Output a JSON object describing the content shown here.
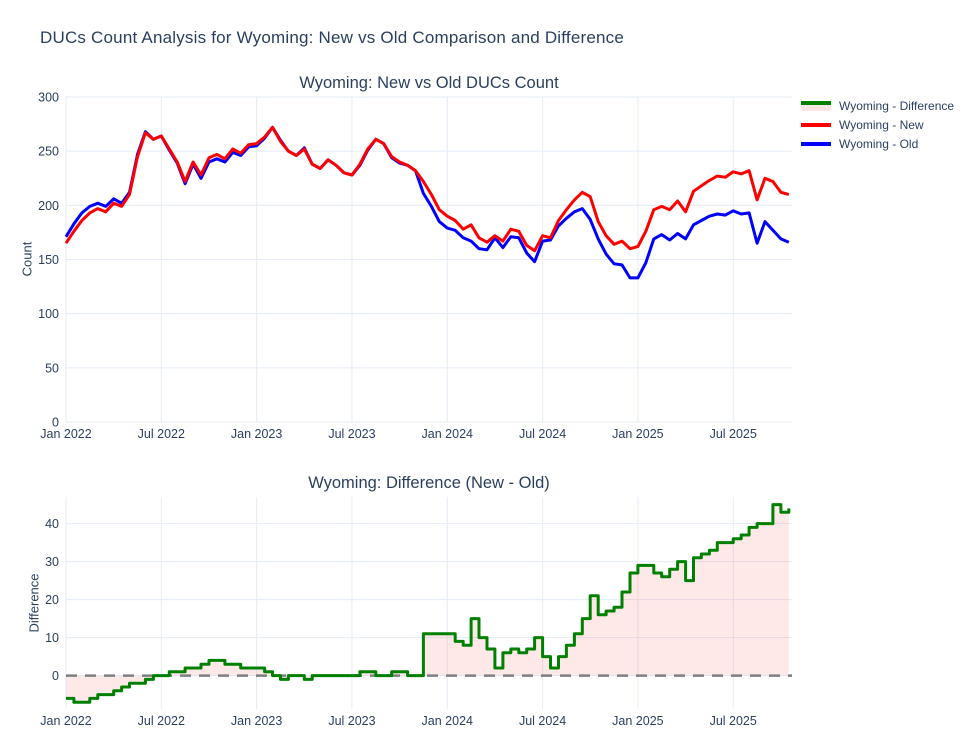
{
  "figure": {
    "title": "DUCs Count Analysis for Wyoming: New vs Old Comparison and Difference"
  },
  "legend": {
    "position": "top-right-outside",
    "items": [
      {
        "label": "Wyoming - Difference",
        "color": "#008000",
        "fill": "#fbe4e4"
      },
      {
        "label": "Wyoming - New",
        "color": "#ff0000"
      },
      {
        "label": "Wyoming - Old",
        "color": "#0000ff"
      }
    ]
  },
  "colors": {
    "text": "#2a3f5f",
    "grid": "#e5ecf6",
    "zero_dash": "#7f7f7f",
    "difference_fill": "rgba(255,0,0,0.09)"
  },
  "chart_data": [
    {
      "type": "line",
      "title": "Wyoming: New vs Old DUCs Count",
      "xlabel": "",
      "ylabel": "Count",
      "grid": true,
      "x_unit": "months since Jan 2022, one value every half month",
      "x_start": 0,
      "x_step": 0.5,
      "xlim": [
        0,
        45.7
      ],
      "ylim": [
        0,
        300
      ],
      "yticks": [
        0,
        50,
        100,
        150,
        200,
        250,
        300
      ],
      "xticks": {
        "positions": [
          0,
          6,
          12,
          18,
          24,
          30,
          36,
          42
        ],
        "labels": [
          "Jan 2022",
          "Jul 2022",
          "Jan 2023",
          "Jul 2023",
          "Jan 2024",
          "Jul 2024",
          "Jan 2025",
          "Jul 2025"
        ]
      },
      "series": [
        {
          "name": "Wyoming - Old",
          "color": "#0000ff",
          "width": 3,
          "values": [
            171,
            183,
            193,
            199,
            202,
            199,
            206,
            202,
            212,
            247,
            268,
            261,
            264,
            251,
            239,
            220,
            238,
            225,
            240,
            243,
            240,
            249,
            246,
            254,
            255,
            262,
            272,
            260,
            250,
            246,
            253,
            238,
            234,
            242,
            237,
            230,
            228,
            237,
            251,
            261,
            257,
            244,
            239,
            237,
            232,
            211,
            199,
            185,
            179,
            177,
            170,
            167,
            160,
            159,
            170,
            161,
            171,
            170,
            156,
            148,
            167,
            168,
            181,
            188,
            194,
            197,
            187,
            169,
            155,
            146,
            145,
            133,
            133,
            147,
            169,
            173,
            168,
            174,
            169,
            182,
            186,
            190,
            192,
            191,
            195,
            192,
            193,
            165,
            185,
            177,
            169,
            166
          ]
        },
        {
          "name": "Wyoming - New",
          "color": "#ff0000",
          "width": 3,
          "values": [
            165,
            176,
            186,
            193,
            197,
            194,
            202,
            199,
            210,
            245,
            267,
            261,
            264,
            252,
            240,
            222,
            240,
            228,
            244,
            247,
            243,
            252,
            248,
            256,
            257,
            263,
            272,
            259,
            250,
            246,
            252,
            238,
            234,
            242,
            237,
            230,
            228,
            238,
            252,
            261,
            257,
            245,
            240,
            237,
            232,
            222,
            210,
            196,
            190,
            186,
            178,
            182,
            170,
            166,
            172,
            167,
            178,
            176,
            163,
            158,
            172,
            170,
            186,
            196,
            205,
            212,
            208,
            185,
            172,
            164,
            167,
            160,
            162,
            176,
            196,
            199,
            196,
            204,
            194,
            213,
            218,
            223,
            227,
            226,
            231,
            229,
            232,
            205,
            225,
            222,
            212,
            210
          ]
        }
      ]
    },
    {
      "type": "line",
      "line_shape": "step-hv",
      "title": "Wyoming: Difference (New - Old)",
      "xlabel": "",
      "ylabel": "Difference",
      "grid": true,
      "x_unit": "months since Jan 2022, one value every half month",
      "x_start": 0,
      "x_step": 0.5,
      "xlim": [
        0,
        45.7
      ],
      "ylim": [
        -8.8,
        47
      ],
      "yticks": [
        0,
        10,
        20,
        30,
        40
      ],
      "xticks": {
        "positions": [
          0,
          6,
          12,
          18,
          24,
          30,
          36,
          42
        ],
        "labels": [
          "Jan 2022",
          "Jul 2022",
          "Jan 2023",
          "Jul 2023",
          "Jan 2024",
          "Jul 2024",
          "Jan 2025",
          "Jul 2025"
        ]
      },
      "zero_line": {
        "value": 0,
        "style": "dashed",
        "color": "#7f7f7f",
        "width": 2.5
      },
      "series": [
        {
          "name": "Wyoming - Difference",
          "color": "#008000",
          "width": 3,
          "fill_to_zero": true,
          "fill_color": "rgba(255,0,0,0.09)",
          "values": [
            -6,
            -7,
            -7,
            -6,
            -5,
            -5,
            -4,
            -3,
            -2,
            -2,
            -1,
            0,
            0,
            1,
            1,
            2,
            2,
            3,
            4,
            4,
            3,
            3,
            2,
            2,
            2,
            1,
            0,
            -1,
            0,
            0,
            -1,
            0,
            0,
            0,
            0,
            0,
            0,
            1,
            1,
            0,
            0,
            1,
            1,
            0,
            0,
            11,
            11,
            11,
            11,
            9,
            8,
            15,
            10,
            7,
            2,
            6,
            7,
            6,
            7,
            10,
            5,
            2,
            5,
            8,
            11,
            15,
            21,
            16,
            17,
            18,
            22,
            27,
            29,
            29,
            27,
            26,
            28,
            30,
            25,
            31,
            32,
            33,
            35,
            35,
            36,
            37,
            39,
            40,
            40,
            45,
            43,
            44
          ]
        }
      ]
    }
  ]
}
